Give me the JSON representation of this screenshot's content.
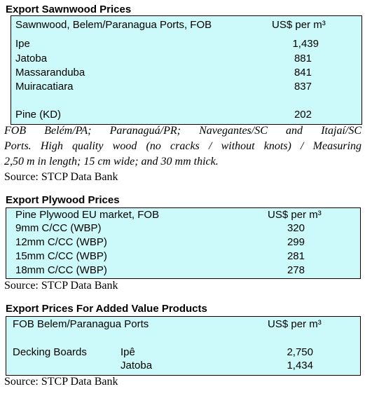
{
  "sawnwood": {
    "title": "Export Sawnwood Prices",
    "header": [
      "Sawnwood, Belem/Paranagua Ports, FOB",
      "US$ per m³"
    ],
    "rows": [
      [
        "Ipe",
        "1,439"
      ],
      [
        "Jatoba",
        "881"
      ],
      [
        "Massaranduba",
        "841"
      ],
      [
        "Muiracatiara",
        "837"
      ],
      [
        "Pine (KD)",
        "202"
      ]
    ],
    "note": [
      "FOB Belém/PA; Paranaguá/PR; Navegantes/SC and Itajaí/SC",
      "Ports. High quality wood (no cracks / without knots) / Measuring",
      "2,50 m in length; 15 cm wide; and 30 mm thick."
    ],
    "source": "Source: STCP Data Bank"
  },
  "plywood": {
    "title": "Export Plywood Prices",
    "header": [
      "Pine Plywood EU market, FOB",
      "US$ per m³"
    ],
    "rows": [
      [
        "9mm C/CC (WBP)",
        "320"
      ],
      [
        "12mm C/CC (WBP)",
        "299"
      ],
      [
        "15mm C/CC (WBP)",
        "281"
      ],
      [
        "18mm C/CC (WBP)",
        "278"
      ]
    ],
    "source": "Source: STCP Data Bank"
  },
  "added_value": {
    "title": "Export Prices For Added Value Products",
    "header": [
      "FOB Belem/Paranagua Ports",
      "US$ per m³"
    ],
    "rows": [
      {
        "product": "Decking Boards",
        "species": "Ipê",
        "price": "2,750"
      },
      {
        "species": "Jatoba",
        "price": "1,434"
      }
    ],
    "source": "Source: STCP Data Bank"
  }
}
